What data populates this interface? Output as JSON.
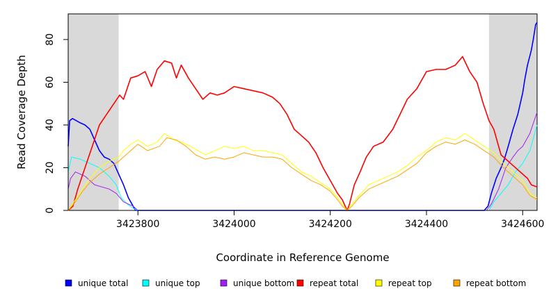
{
  "chart_data": {
    "type": "line",
    "title": "",
    "xlabel": "Coordinate in Reference Genome",
    "ylabel": "Read Coverage Depth",
    "xlim": [
      3423655,
      3424630
    ],
    "ylim": [
      0,
      92
    ],
    "x_ticks": [
      3423800,
      3424000,
      3424200,
      3424400,
      3424600
    ],
    "y_ticks": [
      0,
      20,
      40,
      60,
      80
    ],
    "shaded_regions": [
      [
        3423655,
        3423760
      ],
      [
        3424530,
        3424630
      ]
    ],
    "shade_color": "#d9d9d9",
    "legend_position": "bottom",
    "series": [
      {
        "name": "unique total",
        "color": "#0000ff",
        "points": [
          [
            3423655,
            30
          ],
          [
            3423658,
            42
          ],
          [
            3423664,
            43
          ],
          [
            3423672,
            42
          ],
          [
            3423680,
            41
          ],
          [
            3423690,
            40
          ],
          [
            3423700,
            38
          ],
          [
            3423710,
            33
          ],
          [
            3423720,
            28
          ],
          [
            3423730,
            25
          ],
          [
            3423740,
            24
          ],
          [
            3423750,
            22
          ],
          [
            3423760,
            17
          ],
          [
            3423770,
            12
          ],
          [
            3423780,
            6
          ],
          [
            3423790,
            2
          ],
          [
            3423795,
            0
          ],
          [
            3424520,
            0
          ],
          [
            3424528,
            2
          ],
          [
            3424535,
            8
          ],
          [
            3424545,
            15
          ],
          [
            3424555,
            20
          ],
          [
            3424562,
            24
          ],
          [
            3424570,
            30
          ],
          [
            3424580,
            38
          ],
          [
            3424590,
            45
          ],
          [
            3424600,
            55
          ],
          [
            3424605,
            62
          ],
          [
            3424610,
            68
          ],
          [
            3424618,
            75
          ],
          [
            3424622,
            80
          ],
          [
            3424627,
            87
          ],
          [
            3424630,
            88
          ]
        ]
      },
      {
        "name": "unique top",
        "color": "#00ffff",
        "points": [
          [
            3423655,
            18
          ],
          [
            3423662,
            25
          ],
          [
            3423680,
            24
          ],
          [
            3423700,
            22
          ],
          [
            3423720,
            20
          ],
          [
            3423740,
            16
          ],
          [
            3423755,
            12
          ],
          [
            3423765,
            6
          ],
          [
            3423778,
            3
          ],
          [
            3423790,
            1
          ],
          [
            3423800,
            0
          ],
          [
            3424530,
            0
          ],
          [
            3424540,
            4
          ],
          [
            3424555,
            8
          ],
          [
            3424570,
            12
          ],
          [
            3424585,
            18
          ],
          [
            3424600,
            22
          ],
          [
            3424615,
            28
          ],
          [
            3424630,
            40
          ]
        ]
      },
      {
        "name": "unique bottom",
        "color": "#a020f0",
        "points": [
          [
            3423655,
            10
          ],
          [
            3423660,
            15
          ],
          [
            3423670,
            18
          ],
          [
            3423690,
            16
          ],
          [
            3423710,
            12
          ],
          [
            3423725,
            11
          ],
          [
            3423740,
            10
          ],
          [
            3423755,
            8
          ],
          [
            3423770,
            4
          ],
          [
            3423780,
            3
          ],
          [
            3423790,
            2
          ],
          [
            3423800,
            0
          ],
          [
            3424525,
            0
          ],
          [
            3424535,
            3
          ],
          [
            3424550,
            10
          ],
          [
            3424565,
            20
          ],
          [
            3424580,
            25
          ],
          [
            3424590,
            28
          ],
          [
            3424600,
            30
          ],
          [
            3424615,
            36
          ],
          [
            3424630,
            46
          ]
        ]
      },
      {
        "name": "repeat total",
        "color": "#ff0000",
        "points": [
          [
            3423655,
            0
          ],
          [
            3423665,
            2
          ],
          [
            3423675,
            10
          ],
          [
            3423690,
            20
          ],
          [
            3423705,
            30
          ],
          [
            3423720,
            40
          ],
          [
            3423735,
            45
          ],
          [
            3423750,
            50
          ],
          [
            3423762,
            54
          ],
          [
            3423770,
            52
          ],
          [
            3423785,
            62
          ],
          [
            3423800,
            63
          ],
          [
            3423815,
            65
          ],
          [
            3423828,
            58
          ],
          [
            3423840,
            66
          ],
          [
            3423855,
            70
          ],
          [
            3423870,
            69
          ],
          [
            3423880,
            62
          ],
          [
            3423890,
            68
          ],
          [
            3423905,
            62
          ],
          [
            3423920,
            57
          ],
          [
            3423935,
            52
          ],
          [
            3423950,
            55
          ],
          [
            3423965,
            54
          ],
          [
            3423980,
            55
          ],
          [
            3424000,
            58
          ],
          [
            3424020,
            57
          ],
          [
            3424040,
            56
          ],
          [
            3424060,
            55
          ],
          [
            3424080,
            53
          ],
          [
            3424095,
            50
          ],
          [
            3424110,
            45
          ],
          [
            3424125,
            38
          ],
          [
            3424140,
            35
          ],
          [
            3424155,
            32
          ],
          [
            3424170,
            27
          ],
          [
            3424185,
            20
          ],
          [
            3424200,
            14
          ],
          [
            3424215,
            8
          ],
          [
            3424225,
            5
          ],
          [
            3424235,
            0
          ],
          [
            3424240,
            3
          ],
          [
            3424250,
            12
          ],
          [
            3424262,
            18
          ],
          [
            3424275,
            25
          ],
          [
            3424290,
            30
          ],
          [
            3424310,
            32
          ],
          [
            3424330,
            38
          ],
          [
            3424345,
            45
          ],
          [
            3424360,
            52
          ],
          [
            3424380,
            57
          ],
          [
            3424400,
            65
          ],
          [
            3424420,
            66
          ],
          [
            3424440,
            66
          ],
          [
            3424460,
            68
          ],
          [
            3424475,
            72
          ],
          [
            3424490,
            65
          ],
          [
            3424505,
            60
          ],
          [
            3424518,
            50
          ],
          [
            3424530,
            42
          ],
          [
            3424540,
            38
          ],
          [
            3424555,
            26
          ],
          [
            3424575,
            22
          ],
          [
            3424595,
            18
          ],
          [
            3424610,
            15
          ],
          [
            3424618,
            12
          ],
          [
            3424630,
            11
          ]
        ]
      },
      {
        "name": "repeat top",
        "color": "#ffff00",
        "points": [
          [
            3423655,
            0
          ],
          [
            3423670,
            5
          ],
          [
            3423685,
            10
          ],
          [
            3423700,
            15
          ],
          [
            3423720,
            20
          ],
          [
            3423740,
            23
          ],
          [
            3423760,
            25
          ],
          [
            3423770,
            28
          ],
          [
            3423785,
            31
          ],
          [
            3423800,
            33
          ],
          [
            3423820,
            30
          ],
          [
            3423840,
            32
          ],
          [
            3423855,
            36
          ],
          [
            3423875,
            33
          ],
          [
            3423890,
            32
          ],
          [
            3423910,
            30
          ],
          [
            3423925,
            28
          ],
          [
            3423940,
            26
          ],
          [
            3423960,
            28
          ],
          [
            3423980,
            30
          ],
          [
            3424000,
            29
          ],
          [
            3424020,
            30
          ],
          [
            3424040,
            28
          ],
          [
            3424060,
            28
          ],
          [
            3424080,
            27
          ],
          [
            3424100,
            26
          ],
          [
            3424120,
            22
          ],
          [
            3424140,
            18
          ],
          [
            3424160,
            16
          ],
          [
            3424180,
            13
          ],
          [
            3424200,
            10
          ],
          [
            3424215,
            6
          ],
          [
            3424225,
            3
          ],
          [
            3424235,
            0
          ],
          [
            3424245,
            3
          ],
          [
            3424260,
            7
          ],
          [
            3424280,
            12
          ],
          [
            3424300,
            14
          ],
          [
            3424320,
            16
          ],
          [
            3424340,
            18
          ],
          [
            3424360,
            21
          ],
          [
            3424380,
            25
          ],
          [
            3424400,
            28
          ],
          [
            3424420,
            32
          ],
          [
            3424440,
            34
          ],
          [
            3424460,
            33
          ],
          [
            3424480,
            36
          ],
          [
            3424500,
            33
          ],
          [
            3424520,
            30
          ],
          [
            3424540,
            27
          ],
          [
            3424560,
            22
          ],
          [
            3424580,
            18
          ],
          [
            3424600,
            14
          ],
          [
            3424615,
            8
          ],
          [
            3424630,
            6
          ]
        ]
      },
      {
        "name": "repeat bottom",
        "color": "#ffa500",
        "points": [
          [
            3423655,
            0
          ],
          [
            3423670,
            4
          ],
          [
            3423685,
            9
          ],
          [
            3423700,
            13
          ],
          [
            3423720,
            17
          ],
          [
            3423740,
            20
          ],
          [
            3423760,
            23
          ],
          [
            3423775,
            26
          ],
          [
            3423790,
            29
          ],
          [
            3423800,
            31
          ],
          [
            3423820,
            28
          ],
          [
            3423845,
            30
          ],
          [
            3423860,
            34
          ],
          [
            3423880,
            33
          ],
          [
            3423900,
            30
          ],
          [
            3423920,
            26
          ],
          [
            3423940,
            24
          ],
          [
            3423960,
            25
          ],
          [
            3423980,
            24
          ],
          [
            3424000,
            25
          ],
          [
            3424020,
            27
          ],
          [
            3424040,
            26
          ],
          [
            3424060,
            25
          ],
          [
            3424080,
            25
          ],
          [
            3424100,
            24
          ],
          [
            3424120,
            20
          ],
          [
            3424140,
            17
          ],
          [
            3424160,
            14
          ],
          [
            3424180,
            12
          ],
          [
            3424200,
            9
          ],
          [
            3424215,
            5
          ],
          [
            3424225,
            2
          ],
          [
            3424235,
            0
          ],
          [
            3424245,
            2
          ],
          [
            3424260,
            6
          ],
          [
            3424280,
            10
          ],
          [
            3424300,
            12
          ],
          [
            3424320,
            14
          ],
          [
            3424340,
            16
          ],
          [
            3424360,
            19
          ],
          [
            3424380,
            22
          ],
          [
            3424400,
            27
          ],
          [
            3424420,
            30
          ],
          [
            3424440,
            32
          ],
          [
            3424460,
            31
          ],
          [
            3424480,
            33
          ],
          [
            3424500,
            31
          ],
          [
            3424520,
            28
          ],
          [
            3424540,
            25
          ],
          [
            3424560,
            20
          ],
          [
            3424580,
            16
          ],
          [
            3424600,
            12
          ],
          [
            3424615,
            7
          ],
          [
            3424630,
            5
          ]
        ]
      }
    ]
  }
}
